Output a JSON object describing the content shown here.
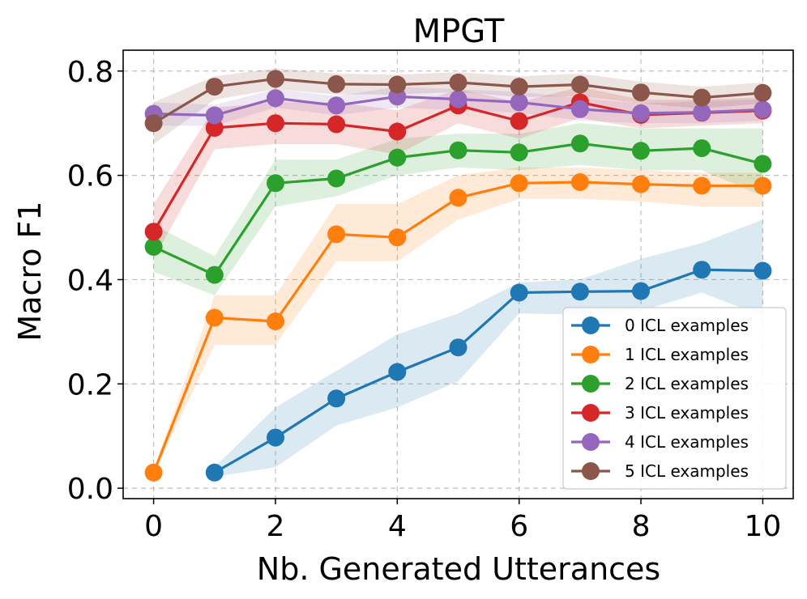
{
  "chart_data": {
    "type": "line",
    "title": "MPGT",
    "xlabel": "Nb. Generated Utterances",
    "ylabel": "Macro F1",
    "xlim": [
      -0.5,
      10.5
    ],
    "ylim": [
      -0.02,
      0.84
    ],
    "xticks": [
      0,
      2,
      4,
      6,
      8,
      10
    ],
    "xtick_labels": [
      "0",
      "2",
      "4",
      "6",
      "8",
      "10"
    ],
    "yticks": [
      0.0,
      0.2,
      0.4,
      0.6,
      0.8
    ],
    "ytick_labels": [
      "0.0",
      "0.2",
      "0.4",
      "0.6",
      "0.8"
    ],
    "grid": true,
    "legend_position": "bottom-right",
    "series": [
      {
        "name": "0 ICL examples",
        "color": "#1f77b4",
        "x": [
          1,
          2,
          3,
          4,
          5,
          6,
          7,
          8,
          9,
          10
        ],
        "y": [
          0.03,
          0.097,
          0.172,
          0.223,
          0.27,
          0.375,
          0.377,
          0.378,
          0.419,
          0.417
        ],
        "lower": [
          0.022,
          0.04,
          0.12,
          0.155,
          0.205,
          0.335,
          0.333,
          0.34,
          0.375,
          0.33
        ],
        "upper": [
          0.04,
          0.155,
          0.225,
          0.295,
          0.335,
          0.395,
          0.4,
          0.44,
          0.47,
          0.515
        ]
      },
      {
        "name": "1 ICL examples",
        "color": "#ff7f0e",
        "x": [
          0,
          1,
          2,
          3,
          4,
          5,
          6,
          7,
          8,
          9,
          10
        ],
        "y": [
          0.03,
          0.327,
          0.32,
          0.487,
          0.481,
          0.557,
          0.585,
          0.587,
          0.583,
          0.58,
          0.58
        ],
        "lower": [
          0.025,
          0.275,
          0.275,
          0.435,
          0.435,
          0.515,
          0.555,
          0.555,
          0.55,
          0.54,
          0.54
        ],
        "upper": [
          0.035,
          0.37,
          0.37,
          0.545,
          0.545,
          0.6,
          0.615,
          0.615,
          0.61,
          0.605,
          0.605
        ]
      },
      {
        "name": "2 ICL examples",
        "color": "#2ca02c",
        "x": [
          0,
          1,
          2,
          3,
          4,
          5,
          6,
          7,
          8,
          9,
          10
        ],
        "y": [
          0.463,
          0.409,
          0.585,
          0.594,
          0.634,
          0.648,
          0.644,
          0.661,
          0.647,
          0.652,
          0.622
        ],
        "lower": [
          0.415,
          0.37,
          0.54,
          0.56,
          0.6,
          0.615,
          0.61,
          0.62,
          0.61,
          0.61,
          0.56
        ],
        "upper": [
          0.505,
          0.445,
          0.63,
          0.63,
          0.67,
          0.68,
          0.68,
          0.7,
          0.69,
          0.69,
          0.69
        ]
      },
      {
        "name": "3 ICL examples",
        "color": "#d62728",
        "x": [
          0,
          1,
          2,
          3,
          4,
          5,
          6,
          7,
          8,
          9,
          10
        ],
        "y": [
          0.492,
          0.691,
          0.7,
          0.698,
          0.684,
          0.734,
          0.704,
          0.74,
          0.716,
          0.72,
          0.724
        ],
        "lower": [
          0.44,
          0.65,
          0.66,
          0.66,
          0.64,
          0.7,
          0.67,
          0.71,
          0.69,
          0.695,
          0.7
        ],
        "upper": [
          0.545,
          0.73,
          0.74,
          0.74,
          0.725,
          0.765,
          0.74,
          0.77,
          0.745,
          0.745,
          0.75
        ]
      },
      {
        "name": "4 ICL examples",
        "color": "#9467bd",
        "x": [
          0,
          1,
          2,
          3,
          4,
          5,
          6,
          7,
          8,
          9,
          10
        ],
        "y": [
          0.718,
          0.715,
          0.748,
          0.734,
          0.751,
          0.746,
          0.74,
          0.727,
          0.719,
          0.721,
          0.726
        ],
        "lower": [
          0.695,
          0.695,
          0.73,
          0.715,
          0.73,
          0.725,
          0.72,
          0.705,
          0.7,
          0.7,
          0.705
        ],
        "upper": [
          0.74,
          0.735,
          0.765,
          0.752,
          0.77,
          0.765,
          0.76,
          0.748,
          0.738,
          0.742,
          0.746
        ]
      },
      {
        "name": "5 ICL examples",
        "color": "#8c564b",
        "x": [
          0,
          1,
          2,
          3,
          4,
          5,
          6,
          7,
          8,
          9,
          10
        ],
        "y": [
          0.7,
          0.77,
          0.785,
          0.775,
          0.774,
          0.778,
          0.77,
          0.774,
          0.759,
          0.749,
          0.758
        ],
        "lower": [
          0.66,
          0.745,
          0.765,
          0.755,
          0.755,
          0.76,
          0.75,
          0.752,
          0.738,
          0.728,
          0.738
        ],
        "upper": [
          0.74,
          0.79,
          0.805,
          0.795,
          0.793,
          0.798,
          0.79,
          0.795,
          0.78,
          0.77,
          0.778
        ]
      }
    ]
  }
}
